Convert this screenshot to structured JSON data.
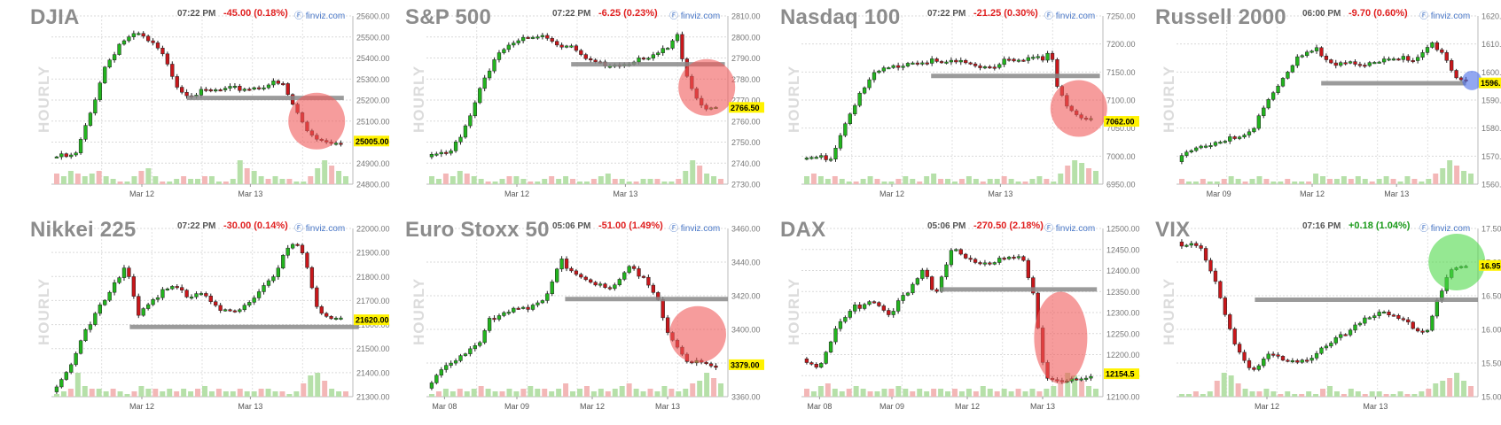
{
  "source_label": "finviz.com",
  "axis_caption": "HOURLY",
  "colors": {
    "up": "#22b41e",
    "down": "#c8171b",
    "up_vol": "#b6e0a9",
    "down_vol": "#f3b7b7",
    "neg": "#e02020",
    "pos": "#1a9a1a",
    "level": "#8a8a8a",
    "red_circle": "#f05a5a",
    "green_circle": "#4ed84a",
    "blue_circle": "#4a6de8",
    "price_tag": "#fff200"
  },
  "chart_data": [
    {
      "type": "candlestick",
      "name": "DJIA",
      "time": "07:22 PM",
      "change": "-45.00 (0.18%)",
      "direction": "down",
      "ylim": [
        24800,
        25600
      ],
      "yticks": [
        "25600.00",
        "25500.00",
        "25400.00",
        "25300.00",
        "25200.00",
        "25100.00",
        "25000.00",
        "24900.00",
        "24800.00"
      ],
      "xticks": [
        "Mar 12",
        "Mar 13"
      ],
      "last_price": "25005.00",
      "last_value": 25005,
      "path": [
        [
          0,
          24930
        ],
        [
          0.08,
          24930
        ],
        [
          0.13,
          25120
        ],
        [
          0.18,
          25350
        ],
        [
          0.24,
          25480
        ],
        [
          0.3,
          25510
        ],
        [
          0.36,
          25450
        ],
        [
          0.4,
          25380
        ],
        [
          0.44,
          25250
        ],
        [
          0.48,
          25230
        ],
        [
          0.55,
          25240
        ],
        [
          0.62,
          25250
        ],
        [
          0.7,
          25260
        ],
        [
          0.76,
          25280
        ],
        [
          0.8,
          25270
        ],
        [
          0.84,
          25160
        ],
        [
          0.88,
          25060
        ],
        [
          0.93,
          25010
        ],
        [
          1.0,
          25005
        ]
      ],
      "level": {
        "value": 25210,
        "from": 0.45,
        "to": 0.97
      },
      "circle": {
        "x": 0.88,
        "value": 25100,
        "color": "red"
      },
      "volume": [
        0.4,
        0.3,
        0.5,
        0.4,
        0.3,
        0.4,
        0.5,
        0.3,
        0.2,
        0.1,
        0.1,
        0.3,
        0.5,
        0.6,
        0.3,
        0.1,
        0.1,
        0.2,
        0.3,
        0.2,
        0.2,
        0.3,
        0.3,
        0.1,
        0.1,
        0.2,
        0.9,
        0.6,
        0.5,
        0.3,
        0.2,
        0.3,
        0.2,
        0.2,
        0.1,
        0.1,
        0.3,
        0.6,
        0.9,
        0.7,
        0.5,
        0.3
      ]
    },
    {
      "type": "candlestick",
      "name": "S&P 500",
      "time": "07:22 PM",
      "change": "-6.25 (0.23%)",
      "direction": "down",
      "ylim": [
        2730,
        2810
      ],
      "yticks": [
        "2810.00",
        "2800.00",
        "2790.00",
        "2780.00",
        "2770.00",
        "2760.00",
        "2750.00",
        "2740.00",
        "2730.00"
      ],
      "xticks": [
        "Mar 12",
        "Mar 13"
      ],
      "last_price": "2766.50",
      "last_value": 2766.5,
      "path": [
        [
          0,
          2743
        ],
        [
          0.08,
          2744
        ],
        [
          0.14,
          2760
        ],
        [
          0.2,
          2782
        ],
        [
          0.26,
          2793
        ],
        [
          0.34,
          2799
        ],
        [
          0.4,
          2802
        ],
        [
          0.45,
          2797
        ],
        [
          0.5,
          2795
        ],
        [
          0.56,
          2788
        ],
        [
          0.62,
          2787
        ],
        [
          0.7,
          2788
        ],
        [
          0.78,
          2790
        ],
        [
          0.84,
          2795
        ],
        [
          0.87,
          2803
        ],
        [
          0.89,
          2785
        ],
        [
          0.93,
          2772
        ],
        [
          0.97,
          2766
        ],
        [
          1.0,
          2766.5
        ]
      ],
      "level": {
        "value": 2787,
        "from": 0.48,
        "to": 0.99
      },
      "circle": {
        "x": 0.93,
        "value": 2776,
        "color": "red"
      },
      "volume": [
        0.3,
        0.2,
        0.4,
        0.3,
        0.5,
        0.4,
        0.3,
        0.2,
        0.1,
        0.1,
        0.2,
        0.3,
        0.3,
        0.2,
        0.1,
        0.1,
        0.2,
        0.3,
        0.2,
        0.3,
        0.2,
        0.1,
        0.1,
        0.2,
        0.3,
        0.4,
        0.2,
        0.2,
        0.1,
        0.1,
        0.2,
        0.2,
        0.2,
        0.1,
        0.1,
        0.2,
        0.5,
        0.9,
        0.7,
        0.4,
        0.3,
        0.2
      ]
    },
    {
      "type": "candlestick",
      "name": "Nasdaq 100",
      "time": "07:22 PM",
      "change": "-21.25 (0.30%)",
      "direction": "down",
      "ylim": [
        6950,
        7250
      ],
      "yticks": [
        "7250.00",
        "7200.00",
        "7150.00",
        "7100.00",
        "7050.00",
        "7000.00",
        "6950.00"
      ],
      "xticks": [
        "Mar 12",
        "Mar 13"
      ],
      "last_price": "7062.00",
      "last_value": 7062,
      "path": [
        [
          0,
          6995
        ],
        [
          0.1,
          6998
        ],
        [
          0.14,
          7050
        ],
        [
          0.2,
          7110
        ],
        [
          0.26,
          7150
        ],
        [
          0.34,
          7165
        ],
        [
          0.42,
          7170
        ],
        [
          0.5,
          7165
        ],
        [
          0.58,
          7165
        ],
        [
          0.64,
          7160
        ],
        [
          0.7,
          7168
        ],
        [
          0.78,
          7170
        ],
        [
          0.84,
          7175
        ],
        [
          0.86,
          7200
        ],
        [
          0.88,
          7130
        ],
        [
          0.92,
          7090
        ],
        [
          0.96,
          7065
        ],
        [
          1.0,
          7062
        ]
      ],
      "level": {
        "value": 7143,
        "from": 0.43,
        "to": 0.99
      },
      "circle": {
        "x": 0.92,
        "value": 7085,
        "color": "red"
      },
      "volume": [
        0.3,
        0.4,
        0.3,
        0.2,
        0.3,
        0.2,
        0.1,
        0.1,
        0.2,
        0.3,
        0.2,
        0.1,
        0.1,
        0.2,
        0.3,
        0.2,
        0.1,
        0.3,
        0.4,
        0.2,
        0.2,
        0.1,
        0.2,
        0.3,
        0.2,
        0.1,
        0.2,
        0.2,
        0.3,
        0.2,
        0.1,
        0.1,
        0.2,
        0.3,
        0.2,
        0.1,
        0.4,
        0.7,
        0.9,
        0.8,
        0.6,
        0.5
      ]
    },
    {
      "type": "candlestick",
      "name": "Russell 2000",
      "time": "06:00 PM",
      "change": "-9.70 (0.60%)",
      "direction": "down",
      "ylim": [
        1560,
        1620
      ],
      "yticks": [
        "1620.00",
        "1610.00",
        "1600.00",
        "1590.00",
        "1580.00",
        "1570.00",
        "1560.00"
      ],
      "xticks": [
        "Mar 09",
        "Mar 12",
        "Mar 13"
      ],
      "last_price": "1596.10",
      "last_value": 1596.1,
      "path": [
        [
          0,
          1568
        ],
        [
          0.06,
          1573
        ],
        [
          0.12,
          1575
        ],
        [
          0.2,
          1576
        ],
        [
          0.26,
          1578
        ],
        [
          0.3,
          1588
        ],
        [
          0.36,
          1597
        ],
        [
          0.42,
          1605
        ],
        [
          0.48,
          1608
        ],
        [
          0.52,
          1603
        ],
        [
          0.58,
          1604
        ],
        [
          0.66,
          1603
        ],
        [
          0.74,
          1604
        ],
        [
          0.82,
          1605
        ],
        [
          0.88,
          1611
        ],
        [
          0.92,
          1606
        ],
        [
          0.96,
          1598
        ],
        [
          1.0,
          1596.1
        ]
      ],
      "level": {
        "value": 1596,
        "from": 0.48,
        "to": 0.96
      },
      "circle": {
        "x": 0.98,
        "value": 1597,
        "color": "blue"
      },
      "volume": [
        0.2,
        0.1,
        0.1,
        0.2,
        0.1,
        0.1,
        0.2,
        0.3,
        0.2,
        0.1,
        0.2,
        0.3,
        0.2,
        0.1,
        0.1,
        0.2,
        0.1,
        0.1,
        0.1,
        0.4,
        0.3,
        0.2,
        0.2,
        0.3,
        0.2,
        0.3,
        0.2,
        0.1,
        0.2,
        0.3,
        0.2,
        0.1,
        0.3,
        0.2,
        0.1,
        0.2,
        0.4,
        0.6,
        0.9,
        0.7,
        0.5,
        0.4
      ]
    },
    {
      "type": "candlestick",
      "name": "Nikkei 225",
      "time": "07:22 PM",
      "change": "-30.00 (0.14%)",
      "direction": "down",
      "ylim": [
        21300,
        22000
      ],
      "yticks": [
        "22000.00",
        "21900.00",
        "21800.00",
        "21700.00",
        "21600.00",
        "21500.00",
        "21400.00",
        "21300.00"
      ],
      "xticks": [
        "Mar 12",
        "Mar 13"
      ],
      "last_price": "21620.00",
      "last_value": 21620,
      "path": [
        [
          0,
          21320
        ],
        [
          0.06,
          21420
        ],
        [
          0.12,
          21590
        ],
        [
          0.2,
          21730
        ],
        [
          0.26,
          21840
        ],
        [
          0.3,
          21650
        ],
        [
          0.36,
          21720
        ],
        [
          0.42,
          21760
        ],
        [
          0.48,
          21700
        ],
        [
          0.52,
          21740
        ],
        [
          0.58,
          21670
        ],
        [
          0.64,
          21650
        ],
        [
          0.7,
          21700
        ],
        [
          0.76,
          21790
        ],
        [
          0.82,
          21940
        ],
        [
          0.86,
          21930
        ],
        [
          0.88,
          21850
        ],
        [
          0.92,
          21650
        ],
        [
          0.96,
          21625
        ],
        [
          1.0,
          21620
        ]
      ],
      "level": {
        "value": 21590,
        "from": 0.26,
        "to": 1.02
      },
      "circle": null,
      "volume": [
        0.1,
        0.2,
        0.3,
        0.9,
        0.4,
        0.3,
        0.3,
        0.2,
        0.3,
        0.2,
        0.1,
        0.2,
        0.4,
        0.3,
        0.3,
        0.2,
        0.3,
        0.2,
        0.3,
        0.2,
        0.3,
        0.4,
        0.2,
        0.3,
        0.2,
        0.2,
        0.3,
        0.2,
        0.2,
        0.3,
        0.3,
        0.2,
        0.2,
        0.1,
        0.2,
        0.5,
        0.8,
        0.9,
        0.6,
        0.3,
        0.2,
        0.2
      ]
    },
    {
      "type": "candlestick",
      "name": "Euro Stoxx 50",
      "time": "05:06 PM",
      "change": "-51.00 (1.49%)",
      "direction": "down",
      "ylim": [
        3360,
        3460
      ],
      "yticks": [
        "3460.00",
        "3440.00",
        "3420.00",
        "3400.00",
        "3380.00",
        "3360.00"
      ],
      "xticks": [
        "Mar 08",
        "Mar 09",
        "Mar 12",
        "Mar 13"
      ],
      "last_price": "3379.00",
      "last_value": 3379,
      "path": [
        [
          0,
          3365
        ],
        [
          0.06,
          3380
        ],
        [
          0.12,
          3384
        ],
        [
          0.18,
          3390
        ],
        [
          0.22,
          3407
        ],
        [
          0.3,
          3413
        ],
        [
          0.38,
          3414
        ],
        [
          0.42,
          3420
        ],
        [
          0.46,
          3441
        ],
        [
          0.52,
          3433
        ],
        [
          0.58,
          3427
        ],
        [
          0.64,
          3423
        ],
        [
          0.7,
          3437
        ],
        [
          0.76,
          3430
        ],
        [
          0.8,
          3418
        ],
        [
          0.84,
          3396
        ],
        [
          0.9,
          3380
        ],
        [
          1.0,
          3379
        ]
      ],
      "level": {
        "value": 3418,
        "from": 0.46,
        "to": 1.0
      },
      "circle": {
        "x": 0.9,
        "value": 3397,
        "color": "red"
      },
      "volume": [
        0.1,
        0.2,
        0.3,
        0.2,
        0.3,
        0.2,
        0.3,
        0.4,
        0.3,
        0.2,
        0.2,
        0.3,
        0.2,
        0.3,
        0.4,
        0.3,
        0.3,
        0.2,
        0.3,
        0.5,
        0.2,
        0.3,
        0.4,
        0.2,
        0.3,
        0.2,
        0.3,
        0.4,
        0.5,
        0.3,
        0.2,
        0.3,
        0.2,
        0.4,
        0.3,
        0.2,
        0.3,
        0.5,
        0.6,
        0.9,
        0.7,
        0.5
      ]
    },
    {
      "type": "candlestick",
      "name": "DAX",
      "time": "05:06 PM",
      "change": "-270.50 (2.18%)",
      "direction": "down",
      "ylim": [
        12100,
        12500
      ],
      "yticks": [
        "12500.00",
        "12450.00",
        "12400.00",
        "12350.00",
        "12300.00",
        "12250.00",
        "12200.00",
        "12150.00",
        "12100.00"
      ],
      "xticks": [
        "Mar 08",
        "Mar 09",
        "Mar 12",
        "Mar 13"
      ],
      "last_price": "12154.5",
      "last_value": 12154.5,
      "path": [
        [
          0,
          12190
        ],
        [
          0.06,
          12170
        ],
        [
          0.12,
          12260
        ],
        [
          0.18,
          12310
        ],
        [
          0.24,
          12330
        ],
        [
          0.3,
          12300
        ],
        [
          0.36,
          12340
        ],
        [
          0.42,
          12400
        ],
        [
          0.46,
          12340
        ],
        [
          0.52,
          12460
        ],
        [
          0.58,
          12420
        ],
        [
          0.64,
          12410
        ],
        [
          0.7,
          12430
        ],
        [
          0.76,
          12440
        ],
        [
          0.8,
          12350
        ],
        [
          0.84,
          12140
        ],
        [
          0.9,
          12130
        ],
        [
          1.0,
          12154.5
        ]
      ],
      "level": {
        "value": 12355,
        "from": 0.46,
        "to": 0.98
      },
      "circle": {
        "x": 0.86,
        "value": 12240,
        "color": "red"
      },
      "volume": [
        0.3,
        0.2,
        0.4,
        0.5,
        0.3,
        0.2,
        0.3,
        0.4,
        0.3,
        0.2,
        0.2,
        0.3,
        0.3,
        0.4,
        0.3,
        0.2,
        0.3,
        0.2,
        0.3,
        0.3,
        0.2,
        0.3,
        0.2,
        0.3,
        0.2,
        0.4,
        0.3,
        0.2,
        0.3,
        0.2,
        0.3,
        0.2,
        0.3,
        0.2,
        0.3,
        0.4,
        0.5,
        0.9,
        0.8,
        0.6,
        0.4,
        0.3
      ]
    },
    {
      "type": "candlestick",
      "name": "VIX",
      "time": "07:16 PM",
      "change": "+0.18 (1.04%)",
      "direction": "up",
      "ylim": [
        15.0,
        17.5
      ],
      "yticks": [
        "17.50",
        "17.00",
        "16.50",
        "16.00",
        "15.50",
        "15.00"
      ],
      "xticks": [
        "Mar 12",
        "Mar 13"
      ],
      "last_price": "16.95",
      "last_value": 16.95,
      "path": [
        [
          0,
          17.3
        ],
        [
          0.08,
          17.2
        ],
        [
          0.14,
          16.6
        ],
        [
          0.2,
          15.8
        ],
        [
          0.26,
          15.4
        ],
        [
          0.32,
          15.6
        ],
        [
          0.4,
          15.5
        ],
        [
          0.46,
          15.6
        ],
        [
          0.52,
          15.8
        ],
        [
          0.58,
          15.9
        ],
        [
          0.64,
          16.1
        ],
        [
          0.7,
          16.3
        ],
        [
          0.76,
          16.2
        ],
        [
          0.82,
          16.0
        ],
        [
          0.86,
          15.9
        ],
        [
          0.9,
          16.4
        ],
        [
          0.94,
          16.9
        ],
        [
          1.0,
          16.95
        ]
      ],
      "level": {
        "value": 16.44,
        "from": 0.26,
        "to": 1.0
      },
      "circle": {
        "x": 0.93,
        "value": 17.0,
        "color": "green"
      },
      "volume": [
        0.1,
        0.1,
        0.2,
        0.1,
        0.2,
        0.6,
        0.9,
        0.8,
        0.5,
        0.3,
        0.2,
        0.2,
        0.3,
        0.2,
        0.1,
        0.2,
        0.1,
        0.1,
        0.2,
        0.1,
        0.3,
        0.4,
        0.2,
        0.1,
        0.3,
        0.2,
        0.1,
        0.2,
        0.2,
        0.1,
        0.1,
        0.2,
        0.1,
        0.1,
        0.2,
        0.3,
        0.5,
        0.6,
        0.7,
        0.9,
        0.6,
        0.4
      ]
    }
  ]
}
